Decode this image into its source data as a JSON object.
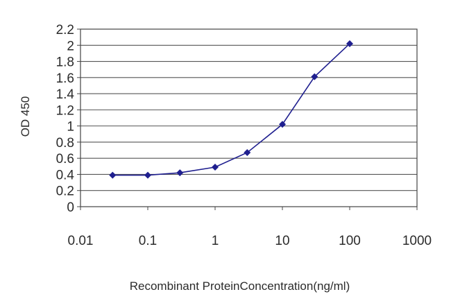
{
  "chart_data": {
    "type": "line",
    "title": "",
    "xlabel": "Recombinant ProteinConcentration(ng/ml)",
    "ylabel": "OD 450",
    "x_scale": "log",
    "xlim": [
      0.01,
      1000
    ],
    "ylim": [
      0,
      2.2
    ],
    "x_ticks": [
      "0.01",
      "0.1",
      "1",
      "10",
      "100",
      "1000"
    ],
    "y_ticks": [
      "0",
      "0.2",
      "0.4",
      "0.6",
      "0.8",
      "1",
      "1.2",
      "1.4",
      "1.6",
      "1.8",
      "2",
      "2.2"
    ],
    "grid": "horizontal",
    "legend": "none",
    "series": [
      {
        "color": "#1f1f8f",
        "marker": "diamond",
        "x": [
          0.03,
          0.1,
          0.3,
          1,
          3,
          10,
          30,
          100
        ],
        "y": [
          0.39,
          0.39,
          0.42,
          0.49,
          0.67,
          1.02,
          1.61,
          2.02
        ]
      }
    ]
  }
}
